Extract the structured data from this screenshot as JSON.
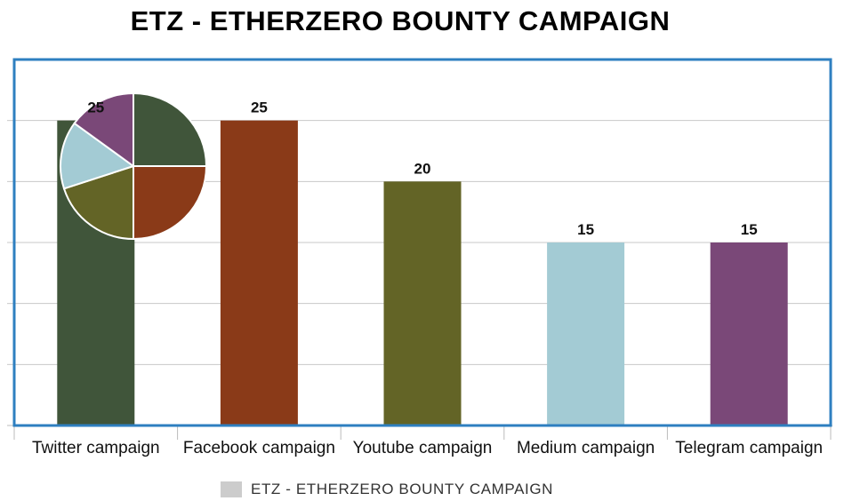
{
  "chart_data": [
    {
      "type": "bar",
      "title": "ETZ - ETHERZERO BOUNTY CAMPAIGN",
      "categories": [
        "Twitter campaign",
        "Facebook campaign",
        "Youtube campaign",
        "Medium campaign",
        "Telegram campaign"
      ],
      "series": [
        {
          "name": "ETZ - ETHERZERO BOUNTY CAMPAIGN",
          "values": [
            25,
            25,
            20,
            15,
            15
          ]
        }
      ],
      "data_labels": [
        "25",
        "25",
        "20",
        "15",
        "15"
      ],
      "colors": [
        "#40553A",
        "#8A3A18",
        "#636426",
        "#A3CBD4",
        "#7A4878"
      ],
      "legend_color": "#CCCCCC",
      "plot_border_color": "#2E7FC0",
      "gridline_color": "#C8C8C8",
      "ylim": [
        0,
        30
      ],
      "y_gridline_step": 5,
      "y_tick_labels_shown": false,
      "grid": true,
      "legend_position": "bottom"
    },
    {
      "type": "pie",
      "categories": [
        "Twitter campaign",
        "Facebook campaign",
        "Youtube campaign",
        "Medium campaign",
        "Telegram campaign"
      ],
      "values": [
        25,
        25,
        20,
        15,
        15
      ],
      "colors": [
        "#40553A",
        "#8A3A18",
        "#636426",
        "#A3CBD4",
        "#7A4878"
      ],
      "start": "top",
      "direction": "clockwise"
    }
  ]
}
